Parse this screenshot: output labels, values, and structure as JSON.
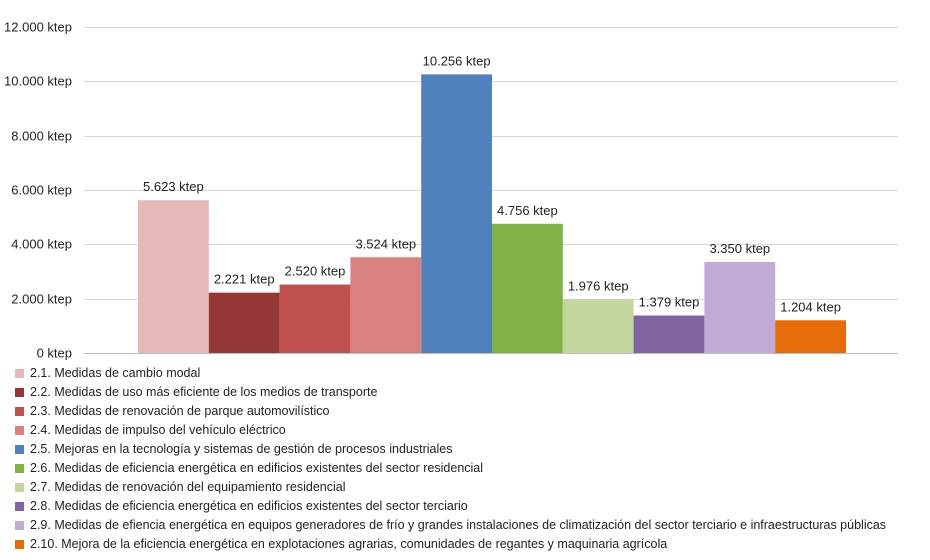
{
  "chart_data": {
    "type": "bar",
    "title": "",
    "xlabel": "",
    "ylabel": "",
    "ylim": [
      0,
      12000
    ],
    "yticks": [
      0,
      2000,
      4000,
      6000,
      8000,
      10000,
      12000
    ],
    "ytick_labels": [
      "0 ktep",
      "2.000 ktep",
      "4.000 ktep",
      "6.000 ktep",
      "8.000 ktep",
      "10.000 ktep",
      "12.000 ktep"
    ],
    "grid": true,
    "legend_position": "bottom",
    "categories": [
      "2.1",
      "2.2",
      "2.3",
      "2.4",
      "2.5",
      "2.6",
      "2.7",
      "2.8",
      "2.9",
      "2.10"
    ],
    "values": [
      5623,
      2221,
      2520,
      3524,
      10256,
      4756,
      1976,
      1379,
      3350,
      1204
    ],
    "data_labels": [
      "5.623 ktep",
      "2.221 ktep",
      "2.520 ktep",
      "3.524 ktep",
      "10.256 ktep",
      "4.756 ktep",
      "1.976 ktep",
      "1.379 ktep",
      "3.350 ktep",
      "1.204 ktep"
    ],
    "colors": [
      "#e6b9b8",
      "#953735",
      "#c0504d",
      "#d9827d",
      "#4f81bd",
      "#7fb347",
      "#c3d69b",
      "#8064a2",
      "#c1aad3",
      "#e46c0a"
    ],
    "legend": [
      "2.1. Medidas de cambio modal",
      "2.2. Medidas de uso más eficiente de los medios de transporte",
      "2.3. Medidas de renovación de parque automovilístico",
      "2.4. Medidas de impulso del vehículo eléctrico",
      "2.5. Mejoras en la tecnología y sistemas de gestión de procesos industriales",
      "2.6. Medidas de eficiencia energética en edificios existentes del sector residencial",
      "2.7. Medidas de renovación del equipamiento residencial",
      "2.8. Medidas de eficiencia energética en edificios existentes del sector terciario",
      "2.9. Medidas de efiencia energética en equipos generadores de frío y grandes instalaciones de climatización del sector terciario e infraestructuras públicas",
      "2.10. Mejora de la eficiencia energética en explotaciones agrarias, comunidades de regantes y maquinaria agrícola"
    ]
  }
}
